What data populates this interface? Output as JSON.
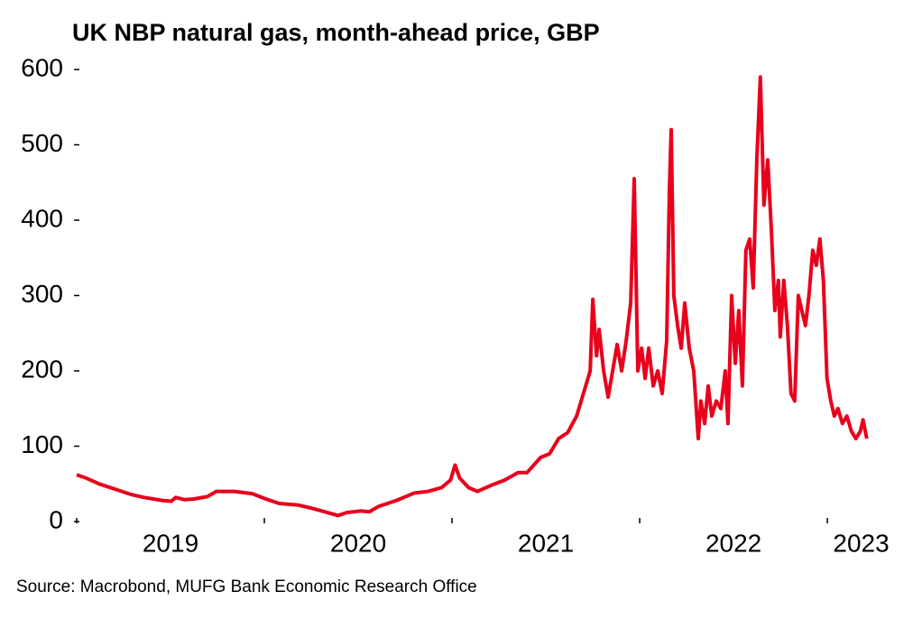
{
  "chart_data": {
    "type": "line",
    "title": "UK NBP natural gas, month-ahead price, GBP",
    "source": "Source: Macrobond, MUFG Bank Economic Research Office",
    "xlim": [
      2019,
      2023.36
    ],
    "xticks": [
      2019,
      2020,
      2021,
      2022,
      2023
    ],
    "ylim": [
      0,
      600
    ],
    "yticks": [
      0,
      100,
      200,
      300,
      400,
      500,
      600
    ],
    "grid": false,
    "series": [
      {
        "name": "UK NBP natural gas",
        "color": "#e8001c",
        "x": [
          2019.0,
          2019.048,
          2019.12,
          2019.216,
          2019.288,
          2019.36,
          2019.456,
          2019.504,
          2019.528,
          2019.576,
          2019.624,
          2019.696,
          2019.744,
          2019.84,
          2019.936,
          2020.008,
          2020.08,
          2020.176,
          2020.248,
          2020.32,
          2020.392,
          2020.44,
          2020.512,
          2020.56,
          2020.608,
          2020.704,
          2020.8,
          2020.872,
          2020.944,
          2020.992,
          2021.016,
          2021.04,
          2021.088,
          2021.136,
          2021.208,
          2021.28,
          2021.352,
          2021.4,
          2021.472,
          2021.52,
          2021.568,
          2021.616,
          2021.664,
          2021.712,
          2021.736,
          2021.75,
          2021.77,
          2021.784,
          2021.808,
          2021.832,
          2021.856,
          2021.88,
          2021.904,
          2021.928,
          2021.952,
          2021.971,
          2021.99,
          2022.01,
          2022.029,
          2022.048,
          2022.072,
          2022.096,
          2022.12,
          2022.144,
          2022.158,
          2022.168,
          2022.182,
          2022.202,
          2022.221,
          2022.24,
          2022.264,
          2022.288,
          2022.312,
          2022.326,
          2022.346,
          2022.365,
          2022.384,
          2022.408,
          2022.432,
          2022.456,
          2022.47,
          2022.49,
          2022.509,
          2022.528,
          2022.547,
          2022.566,
          2022.586,
          2022.605,
          2022.624,
          2022.643,
          2022.662,
          2022.682,
          2022.701,
          2022.72,
          2022.739,
          2022.749,
          2022.768,
          2022.787,
          2022.806,
          2022.826,
          2022.845,
          2022.864,
          2022.883,
          2022.902,
          2022.922,
          2022.941,
          2022.96,
          2022.979,
          2022.998,
          2023.018,
          2023.037,
          2023.056,
          2023.08,
          2023.104,
          2023.128,
          2023.152,
          2023.176,
          2023.19,
          2023.21
        ],
        "values": [
          62,
          58,
          50,
          42,
          36,
          32,
          28,
          27,
          32,
          29,
          30,
          33,
          40,
          40,
          37,
          30,
          24,
          22,
          18,
          13,
          8,
          12,
          14,
          13,
          20,
          28,
          38,
          40,
          45,
          55,
          75,
          58,
          45,
          40,
          48,
          55,
          65,
          65,
          85,
          90,
          110,
          118,
          140,
          180,
          200,
          295,
          220,
          255,
          200,
          165,
          200,
          235,
          200,
          240,
          290,
          455,
          200,
          230,
          190,
          230,
          180,
          200,
          170,
          240,
          440,
          520,
          300,
          260,
          230,
          290,
          230,
          200,
          110,
          160,
          130,
          180,
          140,
          160,
          150,
          200,
          130,
          300,
          210,
          280,
          180,
          360,
          375,
          310,
          480,
          590,
          420,
          480,
          390,
          280,
          320,
          245,
          320,
          260,
          170,
          160,
          300,
          280,
          260,
          300,
          360,
          340,
          375,
          320,
          190,
          160,
          140,
          150,
          130,
          140,
          120,
          110,
          120,
          135,
          110
        ]
      }
    ]
  }
}
